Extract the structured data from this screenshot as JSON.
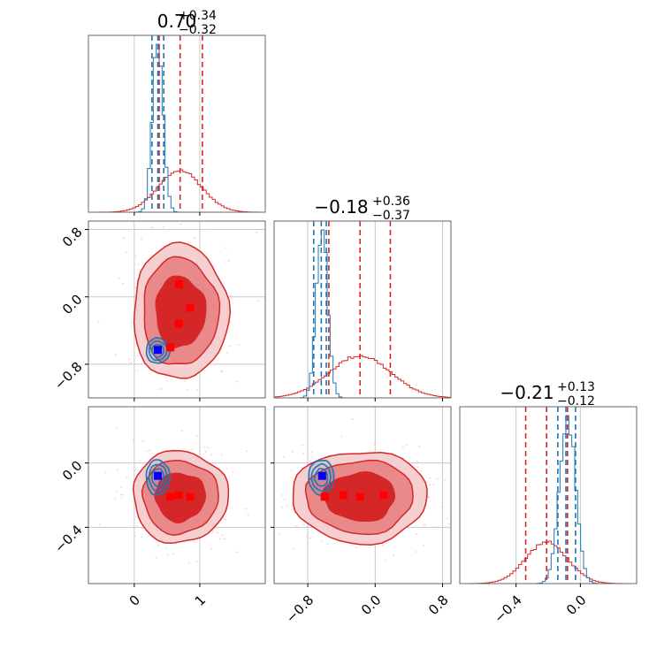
{
  "colors": {
    "red": "#d62728",
    "red_mid": "#e9898a",
    "red_light": "#f6cfd0",
    "blue": "#1f77b4",
    "marker_red": "#ff0000",
    "marker_blue": "#0000ff",
    "grid": "#c8c8c8"
  },
  "chart_data": {
    "type": "corner",
    "parameters": [
      {
        "title_value": "0.70",
        "title_plus": "+0.34",
        "title_minus": "−0.32",
        "range": [
          -0.7,
          2.0
        ],
        "ticks": [
          {
            "v": 0,
            "label": "0"
          },
          {
            "v": 1,
            "label": "1"
          }
        ],
        "quantiles_red": [
          0.38,
          0.7,
          1.04
        ],
        "quantiles_blue": [
          0.27,
          0.36,
          0.45
        ],
        "blue_peak": 0.36
      },
      {
        "title_value": "−0.18",
        "title_plus": "+0.36",
        "title_minus": "−0.37",
        "range": [
          -1.2,
          0.9
        ],
        "ticks": [
          {
            "v": -0.8,
            "label": "−0.8"
          },
          {
            "v": 0.0,
            "label": "0.0"
          },
          {
            "v": 0.8,
            "label": "0.8"
          }
        ],
        "quantiles_red": [
          -0.55,
          -0.18,
          0.18
        ],
        "quantiles_blue": [
          -0.73,
          -0.64,
          -0.58
        ],
        "blue_peak": -0.63
      },
      {
        "title_value": "−0.21",
        "title_plus": "+0.13",
        "title_minus": "−0.12",
        "range": [
          -0.75,
          0.35
        ],
        "ticks": [
          {
            "v": -0.4,
            "label": "−0.4"
          },
          {
            "v": 0.0,
            "label": "0.0"
          }
        ],
        "quantiles_red": [
          -0.34,
          -0.21,
          -0.08
        ],
        "quantiles_blue": [
          -0.14,
          -0.09,
          -0.03
        ],
        "blue_peak": -0.08
      }
    ],
    "red_markers": {
      "p1_p2": [
        [
          0.68,
          0.15
        ],
        [
          0.85,
          -0.13
        ],
        [
          0.68,
          -0.32
        ],
        [
          0.55,
          -0.6
        ]
      ],
      "p1_p3": [
        [
          0.55,
          -0.21
        ],
        [
          0.68,
          -0.2
        ],
        [
          0.85,
          -0.21
        ]
      ],
      "p2_p3": [
        [
          -0.6,
          -0.21
        ],
        [
          -0.38,
          -0.2
        ],
        [
          -0.18,
          -0.21
        ],
        [
          0.1,
          -0.2
        ]
      ]
    },
    "blue_marker": {
      "p1_p2": [
        0.36,
        -0.63
      ],
      "p1_p3": [
        0.36,
        -0.08
      ],
      "p2_p3": [
        -0.63,
        -0.08
      ]
    }
  }
}
